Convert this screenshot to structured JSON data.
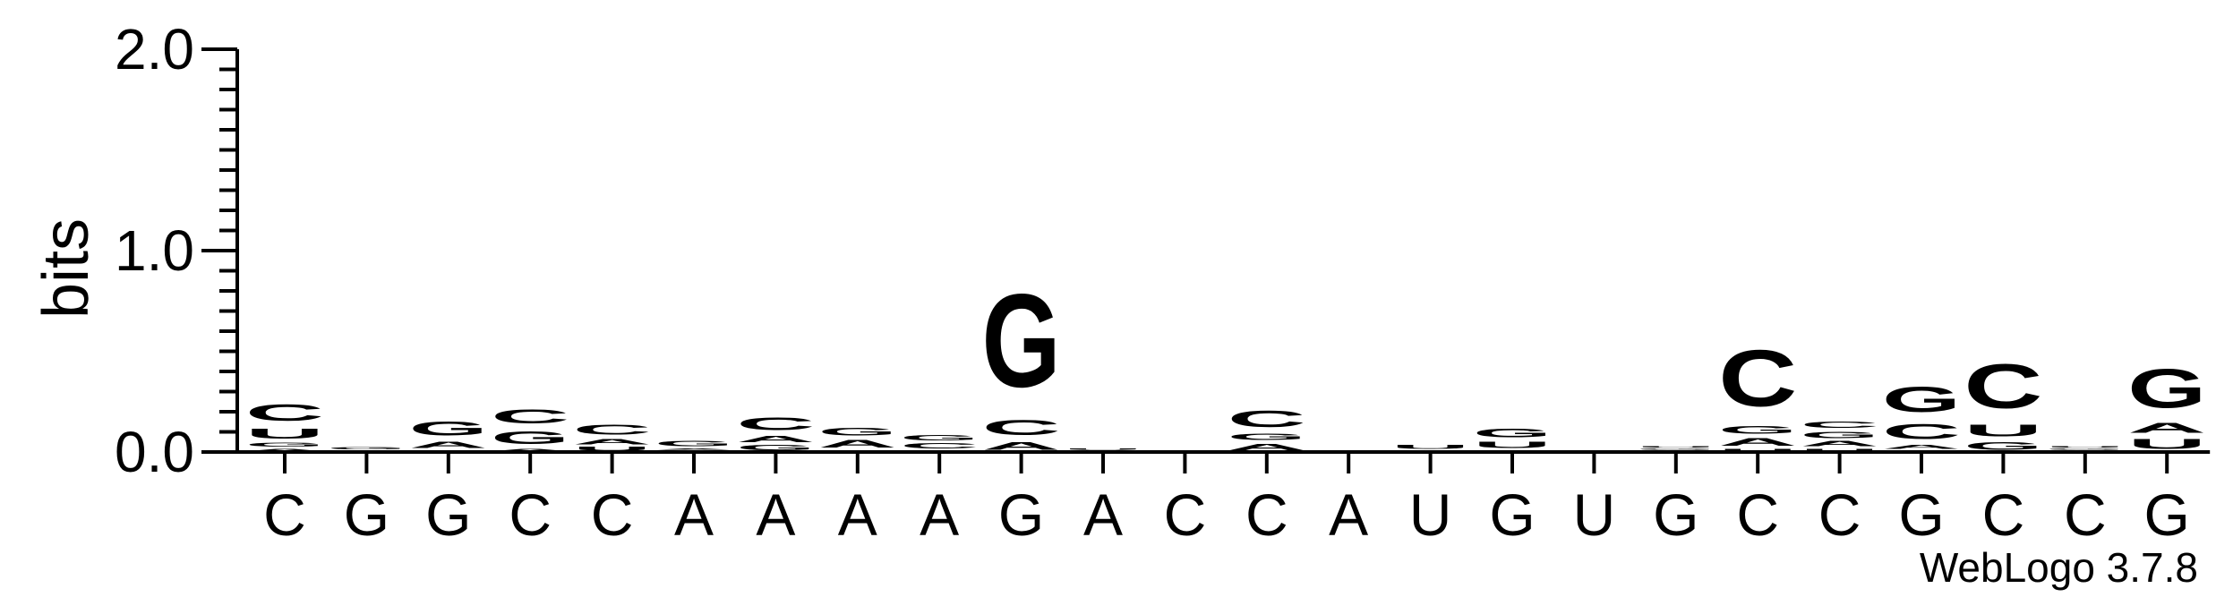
{
  "chart_data": {
    "type": "sequence-logo",
    "title": "",
    "ylabel": "bits",
    "xlabel": "",
    "ylim": [
      0,
      2.0
    ],
    "yticks": [
      "0.0",
      "1.0",
      "2.0"
    ],
    "colors": {
      "A": "#F7901E",
      "U": "#F7901E",
      "G": "#0000EE",
      "C": "#0000EE"
    },
    "positions": [
      {
        "label": "C",
        "stack": [
          [
            "A",
            0.02
          ],
          [
            "G",
            0.03
          ],
          [
            "U",
            0.08
          ],
          [
            "C",
            0.13
          ]
        ]
      },
      {
        "label": "G",
        "stack": [
          [
            "C",
            0.01
          ],
          [
            "G",
            0.02
          ]
        ]
      },
      {
        "label": "G",
        "stack": [
          [
            "C",
            0.01
          ],
          [
            "A",
            0.05
          ],
          [
            "G",
            0.11
          ]
        ]
      },
      {
        "label": "C",
        "stack": [
          [
            "A",
            0.02
          ],
          [
            "G",
            0.1
          ],
          [
            "C",
            0.11
          ]
        ]
      },
      {
        "label": "C",
        "stack": [
          [
            "U",
            0.03
          ],
          [
            "A",
            0.04
          ],
          [
            "C",
            0.08
          ]
        ]
      },
      {
        "label": "A",
        "stack": [
          [
            "U",
            0.01
          ],
          [
            "A",
            0.01
          ],
          [
            "G",
            0.04
          ]
        ]
      },
      {
        "label": "A",
        "stack": [
          [
            "G",
            0.04
          ],
          [
            "A",
            0.05
          ],
          [
            "C",
            0.1
          ]
        ]
      },
      {
        "label": "A",
        "stack": [
          [
            "U",
            0.01
          ],
          [
            "A",
            0.06
          ],
          [
            "G",
            0.06
          ]
        ]
      },
      {
        "label": "A",
        "stack": [
          [
            "A",
            0.01
          ],
          [
            "C",
            0.04
          ],
          [
            "G",
            0.04
          ]
        ]
      },
      {
        "label": "G",
        "stack": [
          [
            "A",
            0.06
          ],
          [
            "C",
            0.12
          ],
          [
            "G",
            0.74
          ]
        ]
      },
      {
        "label": "A",
        "stack": [
          [
            "C",
            0.01
          ],
          [
            "U",
            0.01
          ]
        ]
      },
      {
        "label": "C",
        "stack": []
      },
      {
        "label": "C",
        "stack": [
          [
            "A",
            0.05
          ],
          [
            "G",
            0.05
          ],
          [
            "C",
            0.13
          ]
        ]
      },
      {
        "label": "A",
        "stack": []
      },
      {
        "label": "U",
        "stack": [
          [
            "C",
            0.01
          ],
          [
            "U",
            0.03
          ]
        ]
      },
      {
        "label": "G",
        "stack": [
          [
            "C",
            0.01
          ],
          [
            "U",
            0.05
          ],
          [
            "G",
            0.07
          ]
        ]
      },
      {
        "label": "U",
        "stack": []
      },
      {
        "label": "G",
        "stack": [
          [
            "C",
            0.01
          ],
          [
            "G",
            0.01
          ],
          [
            "U",
            0.01
          ]
        ]
      },
      {
        "label": "C",
        "stack": [
          [
            "U",
            0.02
          ],
          [
            "A",
            0.06
          ],
          [
            "G",
            0.06
          ],
          [
            "C",
            0.45
          ]
        ]
      },
      {
        "label": "C",
        "stack": [
          [
            "U",
            0.02
          ],
          [
            "A",
            0.04
          ],
          [
            "G",
            0.05
          ],
          [
            "C",
            0.05
          ]
        ]
      },
      {
        "label": "G",
        "stack": [
          [
            "U",
            0.01
          ],
          [
            "A",
            0.03
          ],
          [
            "C",
            0.12
          ],
          [
            "G",
            0.2
          ]
        ]
      },
      {
        "label": "C",
        "stack": [
          [
            "G",
            0.06
          ],
          [
            "U",
            0.09
          ],
          [
            "C",
            0.35
          ]
        ]
      },
      {
        "label": "C",
        "stack": [
          [
            "C",
            0.01
          ],
          [
            "G",
            0.01
          ],
          [
            "U",
            0.01
          ]
        ]
      },
      {
        "label": "G",
        "stack": [
          [
            "U",
            0.08
          ],
          [
            "A",
            0.08
          ],
          [
            "G",
            0.31
          ]
        ]
      }
    ],
    "footer": "WebLogo 3.7.8"
  }
}
